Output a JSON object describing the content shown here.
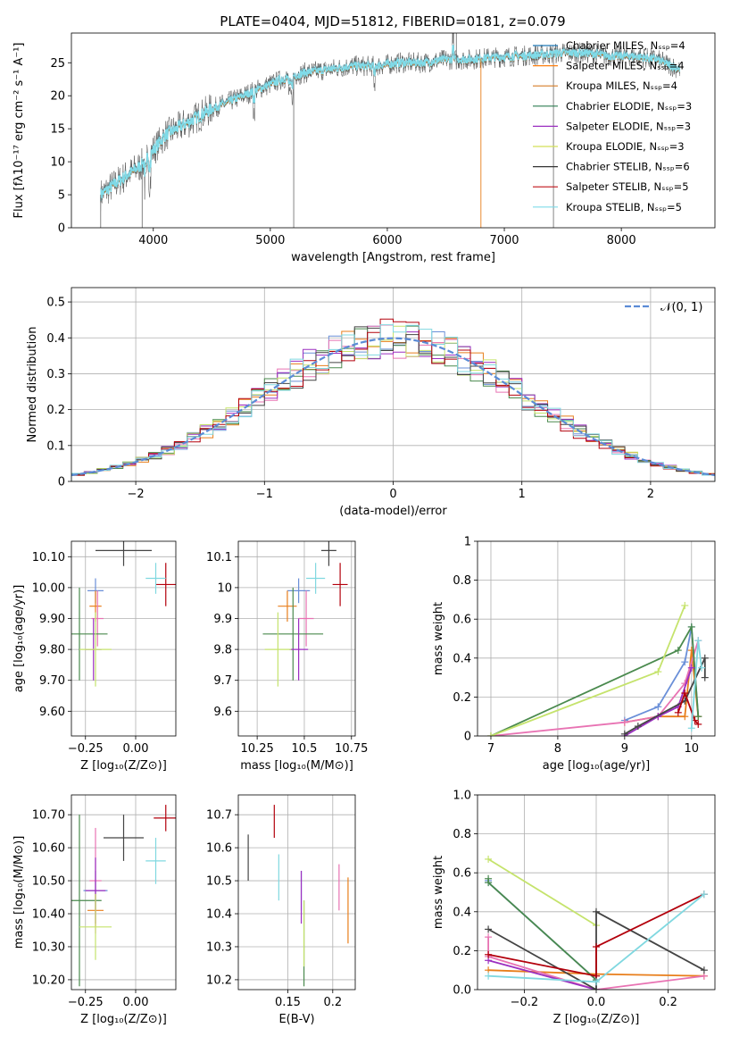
{
  "figure": {
    "title": "PLATE=0404, MJD=51812, FIBERID=0181, z=0.079",
    "model_colors": [
      "#1f77b4",
      "#ff7f0e",
      "#d67e29",
      "#2e7d52",
      "#9b2fc0",
      "#d4e157",
      "#333333",
      "#c0141a",
      "#7fdbe8"
    ],
    "panel_colors": [
      "#6a8fd8",
      "#e87e1b",
      "#e873b3",
      "#4a8a4e",
      "#9b2fc0",
      "#c5e36c",
      "#444444",
      "#b3000c",
      "#80d8e0"
    ]
  },
  "chart_data": [
    {
      "id": "spectrum",
      "type": "line",
      "title": "PLATE=0404, MJD=51812, FIBERID=0181, z=0.079",
      "xlabel": "wavelength [Angstrom, rest frame]",
      "ylabel": "Flux [fλ10⁻¹⁷ erg cm⁻² s⁻¹ A⁻¹]",
      "xlim": [
        3300,
        8800
      ],
      "ylim": [
        0,
        29.5
      ],
      "xticks": [
        4000,
        5000,
        6000,
        7000,
        8000
      ],
      "yticks": [
        0,
        5,
        10,
        15,
        20,
        25
      ],
      "grid": false,
      "legend_position": "right",
      "legend": [
        "Chabrier MILES, Nₛₛₚ=4",
        "Salpeter MILES, Nₛₛₚ=4",
        "Kroupa MILES, Nₛₛₚ=4",
        "Chabrier ELODIE, Nₛₛₚ=3",
        "Salpeter ELODIE, Nₛₛₚ=3",
        "Kroupa ELODIE, Nₛₛₚ=3",
        "Chabrier STELIB, Nₛₛₚ=6",
        "Salpeter STELIB, Nₛₛₚ=5",
        "Kroupa STELIB, Nₛₛₚ=5"
      ],
      "continuum": [
        [
          3550,
          5
        ],
        [
          3700,
          7
        ],
        [
          3900,
          9.5
        ],
        [
          4100,
          14
        ],
        [
          4300,
          16
        ],
        [
          4500,
          18
        ],
        [
          4700,
          19.5
        ],
        [
          4900,
          21
        ],
        [
          5100,
          22.5
        ],
        [
          5300,
          23.5
        ],
        [
          5500,
          24
        ],
        [
          5700,
          24.5
        ],
        [
          5900,
          24.5
        ],
        [
          6100,
          25
        ],
        [
          6300,
          25
        ],
        [
          6500,
          25.5
        ],
        [
          6700,
          25.5
        ],
        [
          6900,
          25.8
        ],
        [
          7100,
          26
        ],
        [
          7300,
          26.2
        ],
        [
          7500,
          26.5
        ],
        [
          7700,
          26.5
        ],
        [
          7900,
          26
        ],
        [
          8100,
          26
        ],
        [
          8300,
          25.5
        ],
        [
          8500,
          24
        ]
      ]
    },
    {
      "id": "residuals",
      "type": "line",
      "xlabel": "(data-model)/error",
      "ylabel": "Normed distribution",
      "xlim": [
        -2.5,
        2.5
      ],
      "ylim": [
        0,
        0.54
      ],
      "xticks": [
        -2,
        -1,
        0,
        1,
        2
      ],
      "yticks": [
        0.0,
        0.1,
        0.2,
        0.3,
        0.4,
        0.5
      ],
      "grid": true,
      "legend": [
        "𝒩(0, 1)"
      ],
      "legend_position": "top-right",
      "gaussian": {
        "mean": 0,
        "sigma": 1
      }
    },
    {
      "id": "age_vs_Z",
      "type": "scatter",
      "xlabel": "Z [log₁₀(Z/Z⊙)]",
      "ylabel": "age  [log₁₀(age/yr)]",
      "xlim": [
        -0.32,
        0.2
      ],
      "ylim": [
        9.52,
        10.15
      ],
      "xticks": [
        -0.25,
        0.0
      ],
      "yticks": [
        9.6,
        9.7,
        9.8,
        9.9,
        10.0,
        10.1
      ],
      "grid": true,
      "points": [
        {
          "x": -0.2,
          "y": 9.99,
          "xerr": 0.04,
          "yerr": 0.04
        },
        {
          "x": -0.2,
          "y": 9.94,
          "xerr": 0.03,
          "yerr": 0.05
        },
        {
          "x": -0.19,
          "y": 9.9,
          "xerr": 0.03,
          "yerr": 0.09
        },
        {
          "x": -0.28,
          "y": 9.85,
          "xerr": 0.14,
          "yerr": 0.15
        },
        {
          "x": -0.21,
          "y": 9.8,
          "xerr": 0.04,
          "yerr": 0.1
        },
        {
          "x": -0.2,
          "y": 9.8,
          "xerr": 0.08,
          "yerr": 0.12
        },
        {
          "x": -0.06,
          "y": 10.12,
          "xerr": 0.14,
          "yerr": 0.05
        },
        {
          "x": 0.15,
          "y": 10.01,
          "xerr": 0.05,
          "yerr": 0.07
        },
        {
          "x": 0.1,
          "y": 10.03,
          "xerr": 0.05,
          "yerr": 0.05
        }
      ]
    },
    {
      "id": "age_vs_mass",
      "type": "scatter",
      "xlabel": "mass [log₁₀(M/M⊙)]",
      "ylabel": "",
      "xlim": [
        10.15,
        10.77
      ],
      "ylim": [
        9.52,
        10.15
      ],
      "xticks": [
        10.25,
        10.5,
        10.75
      ],
      "yticks": [
        9.6,
        9.7,
        9.8,
        9.9,
        10.0,
        10.1
      ],
      "grid": true,
      "points": [
        {
          "x": 10.47,
          "y": 9.99,
          "xerr": 0.06,
          "yerr": 0.04
        },
        {
          "x": 10.41,
          "y": 9.94,
          "xerr": 0.05,
          "yerr": 0.05
        },
        {
          "x": 10.51,
          "y": 9.9,
          "xerr": 0.04,
          "yerr": 0.09
        },
        {
          "x": 10.44,
          "y": 9.85,
          "xerr": 0.16,
          "yerr": 0.15
        },
        {
          "x": 10.47,
          "y": 9.8,
          "xerr": 0.05,
          "yerr": 0.1
        },
        {
          "x": 10.36,
          "y": 9.8,
          "xerr": 0.07,
          "yerr": 0.12
        },
        {
          "x": 10.63,
          "y": 10.12,
          "xerr": 0.04,
          "yerr": 0.05
        },
        {
          "x": 10.69,
          "y": 10.01,
          "xerr": 0.04,
          "yerr": 0.07
        },
        {
          "x": 10.56,
          "y": 10.03,
          "xerr": 0.05,
          "yerr": 0.05
        }
      ]
    },
    {
      "id": "weight_vs_age",
      "type": "line",
      "xlabel": "age  [log₁₀(age/yr)]",
      "ylabel": "mass weight",
      "xlim": [
        6.8,
        10.35
      ],
      "ylim": [
        0,
        1.0
      ],
      "xticks": [
        7,
        8,
        9,
        10
      ],
      "yticks": [
        0.0,
        0.2,
        0.4,
        0.6,
        0.8,
        1.0
      ],
      "grid": true,
      "series": [
        {
          "x": [
            9.0,
            9.5,
            9.9,
            10.0,
            10.1
          ],
          "y": [
            0.08,
            0.15,
            0.38,
            0.56,
            0.1
          ]
        },
        {
          "x": [
            9.0,
            9.5,
            9.9,
            10.0,
            10.1
          ],
          "y": [
            0.07,
            0.1,
            0.1,
            0.44,
            0.1
          ]
        },
        {
          "x": [
            7.0,
            9.0,
            9.5,
            9.9,
            10.1
          ],
          "y": [
            0.0,
            0.07,
            0.1,
            0.27,
            0.49
          ]
        },
        {
          "x": [
            7.0,
            9.8,
            10.0,
            10.1
          ],
          "y": [
            0.0,
            0.44,
            0.56,
            0.1
          ]
        },
        {
          "x": [
            9.0,
            9.5,
            9.8,
            10.0
          ],
          "y": [
            0.0,
            0.1,
            0.15,
            0.35
          ]
        },
        {
          "x": [
            7.0,
            9.5,
            9.9
          ],
          "y": [
            0.0,
            0.33,
            0.67
          ]
        },
        {
          "x": [
            9.0,
            9.2,
            9.9,
            10.2,
            10.2
          ],
          "y": [
            0.01,
            0.05,
            0.18,
            0.4,
            0.3
          ]
        },
        {
          "x": [
            9.8,
            9.9,
            10.05,
            10.1
          ],
          "y": [
            0.12,
            0.22,
            0.08,
            0.06
          ]
        },
        {
          "x": [
            10.0,
            10.1,
            10.15
          ],
          "y": [
            0.04,
            0.49,
            0.35
          ]
        }
      ]
    },
    {
      "id": "mass_vs_Z",
      "type": "scatter",
      "xlabel": "Z [log₁₀(Z/Z⊙)]",
      "ylabel": "mass [log₁₀(M/M⊙)]",
      "xlim": [
        -0.32,
        0.2
      ],
      "ylim": [
        10.17,
        10.76
      ],
      "xticks": [
        -0.25,
        0.0
      ],
      "yticks": [
        10.2,
        10.3,
        10.4,
        10.5,
        10.6,
        10.7
      ],
      "grid": true,
      "points": [
        {
          "x": -0.2,
          "y": 10.47,
          "xerr": 0.06,
          "yerr": 0.06
        },
        {
          "x": -0.2,
          "y": 10.41,
          "xerr": 0.04,
          "yerr": 0.05
        },
        {
          "x": -0.2,
          "y": 10.5,
          "xerr": 0.03,
          "yerr": 0.16
        },
        {
          "x": -0.28,
          "y": 10.44,
          "xerr": 0.11,
          "yerr": 0.26
        },
        {
          "x": -0.2,
          "y": 10.47,
          "xerr": 0.05,
          "yerr": 0.1
        },
        {
          "x": -0.2,
          "y": 10.36,
          "xerr": 0.08,
          "yerr": 0.1
        },
        {
          "x": -0.06,
          "y": 10.63,
          "xerr": 0.1,
          "yerr": 0.07
        },
        {
          "x": 0.15,
          "y": 10.69,
          "xerr": 0.06,
          "yerr": 0.04
        },
        {
          "x": 0.1,
          "y": 10.56,
          "xerr": 0.05,
          "yerr": 0.07
        }
      ]
    },
    {
      "id": "mass_vs_EBV",
      "type": "scatter",
      "xlabel": "E(B-V)",
      "ylabel": "",
      "xlim": [
        0.095,
        0.225
      ],
      "ylim": [
        10.17,
        10.76
      ],
      "xticks": [
        0.15,
        0.2
      ],
      "yticks": [
        10.2,
        10.3,
        10.4,
        10.5,
        10.6,
        10.7
      ],
      "grid": true,
      "points": [
        {
          "x": 0.165,
          "y": 10.47,
          "yerr": 0.06
        },
        {
          "x": 0.217,
          "y": 10.41,
          "yerr": 0.1
        },
        {
          "x": 0.207,
          "y": 10.48,
          "yerr": 0.07
        },
        {
          "x": 0.168,
          "y": 10.31,
          "yerr": 0.13
        },
        {
          "x": 0.165,
          "y": 10.45,
          "yerr": 0.08
        },
        {
          "x": 0.168,
          "y": 10.34,
          "yerr": 0.1
        },
        {
          "x": 0.106,
          "y": 10.57,
          "yerr": 0.07
        },
        {
          "x": 0.135,
          "y": 10.68,
          "yerr": 0.05
        },
        {
          "x": 0.14,
          "y": 10.51,
          "yerr": 0.07
        }
      ]
    },
    {
      "id": "weight_vs_Z",
      "type": "line",
      "xlabel": "Z [log₁₀(Z/Z⊙)]",
      "ylabel": "mass weight",
      "xlim": [
        -0.33,
        0.33
      ],
      "ylim": [
        0,
        1.0
      ],
      "xticks": [
        -0.2,
        0.0,
        0.2
      ],
      "yticks": [
        0.0,
        0.2,
        0.4,
        0.6,
        0.8,
        1.0
      ],
      "grid": true,
      "series": [
        {
          "x": [
            -0.3,
            -0.3,
            0.0
          ],
          "y": [
            0.56,
            0.55,
            0.05
          ]
        },
        {
          "x": [
            -0.3,
            0.0,
            0.3
          ],
          "y": [
            0.1,
            0.08,
            0.07
          ]
        },
        {
          "x": [
            -0.3,
            -0.3,
            0.0,
            0.3
          ],
          "y": [
            0.27,
            0.17,
            0.0,
            0.07
          ]
        },
        {
          "x": [
            -0.3,
            -0.3,
            0.0
          ],
          "y": [
            0.57,
            0.55,
            0.05
          ]
        },
        {
          "x": [
            -0.3,
            0.0
          ],
          "y": [
            0.15,
            0.0
          ]
        },
        {
          "x": [
            -0.3,
            0.0
          ],
          "y": [
            0.67,
            0.33
          ]
        },
        {
          "x": [
            -0.3,
            0.0,
            0.0,
            0.3
          ],
          "y": [
            0.31,
            0.0,
            0.4,
            0.1
          ]
        },
        {
          "x": [
            -0.3,
            0.0,
            0.0,
            0.3
          ],
          "y": [
            0.18,
            0.07,
            0.22,
            0.49
          ]
        },
        {
          "x": [
            -0.3,
            0.0,
            0.3
          ],
          "y": [
            0.07,
            0.04,
            0.49
          ]
        }
      ]
    }
  ]
}
